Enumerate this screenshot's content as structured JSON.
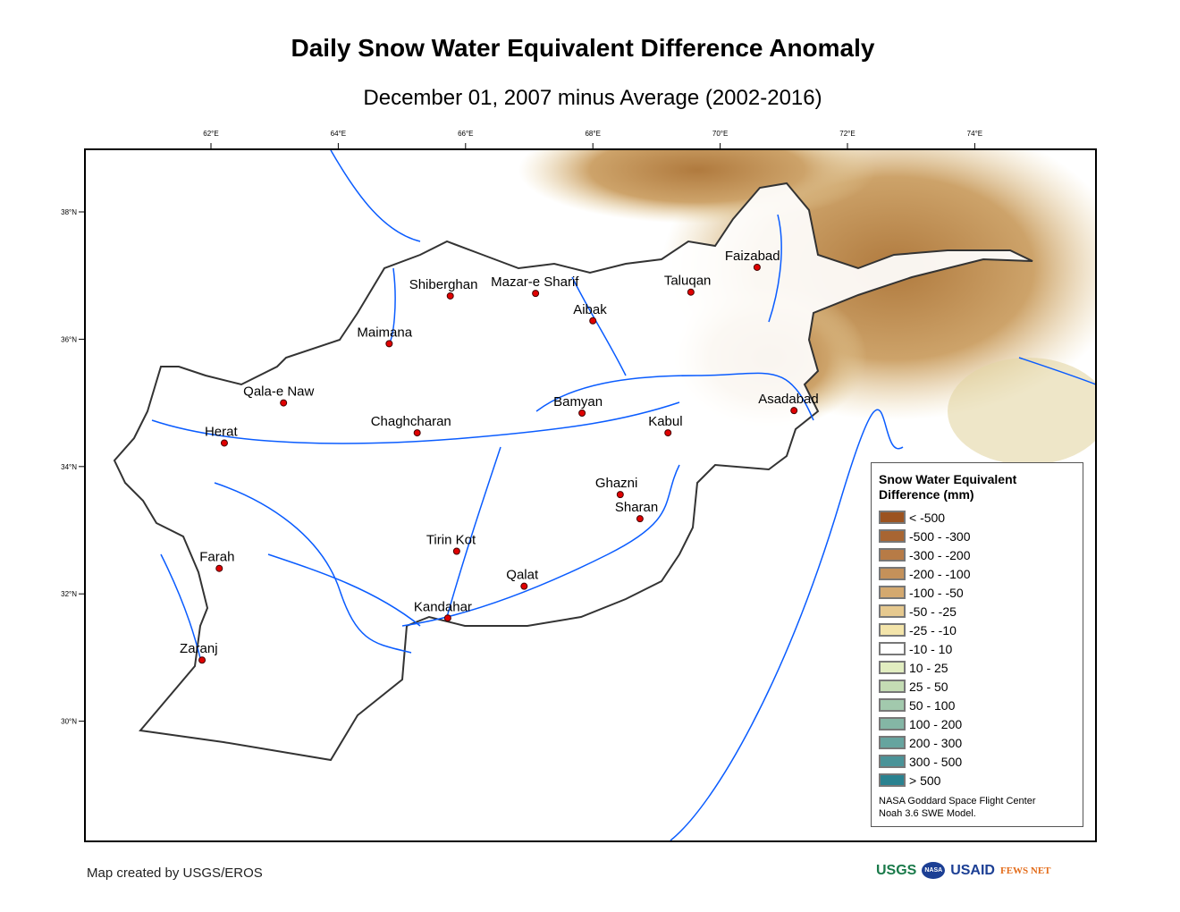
{
  "title": "Daily Snow Water Equivalent Difference Anomaly",
  "subtitle": "December 01, 2007 minus Average (2002-2016)",
  "axes": {
    "lon_ticks": [
      {
        "value": 62,
        "label": "62°E"
      },
      {
        "value": 64,
        "label": "64°E"
      },
      {
        "value": 66,
        "label": "66°E"
      },
      {
        "value": 68,
        "label": "68°E"
      },
      {
        "value": 70,
        "label": "70°E"
      },
      {
        "value": 72,
        "label": "72°E"
      },
      {
        "value": 74,
        "label": "74°E"
      }
    ],
    "lat_ticks": [
      {
        "value": 38,
        "label": "38°N"
      },
      {
        "value": 36,
        "label": "36°N"
      },
      {
        "value": 34,
        "label": "34°N"
      },
      {
        "value": 32,
        "label": "32°N"
      },
      {
        "value": 30,
        "label": "30°N"
      }
    ]
  },
  "cities": [
    {
      "name": "Herat",
      "lon": 62.21,
      "lat": 34.37,
      "dx": -22,
      "dy": -8
    },
    {
      "name": "Qala-e Naw",
      "lon": 63.14,
      "lat": 35.0,
      "dx": -45,
      "dy": -8
    },
    {
      "name": "Maimana",
      "lon": 64.8,
      "lat": 35.93,
      "dx": -36,
      "dy": -8
    },
    {
      "name": "Shiberghan",
      "lon": 65.76,
      "lat": 36.68,
      "dx": -46,
      "dy": -8
    },
    {
      "name": "Mazar-e Sharif",
      "lon": 67.1,
      "lat": 36.72,
      "dx": -50,
      "dy": -8
    },
    {
      "name": "Aibak",
      "lon": 68.0,
      "lat": 36.29,
      "dx": -22,
      "dy": -8
    },
    {
      "name": "Taluqan",
      "lon": 69.54,
      "lat": 36.74,
      "dx": -30,
      "dy": -8
    },
    {
      "name": "Faizabad",
      "lon": 70.58,
      "lat": 37.13,
      "dx": -36,
      "dy": -8
    },
    {
      "name": "Bamyan",
      "lon": 67.83,
      "lat": 34.84,
      "dx": -32,
      "dy": -8
    },
    {
      "name": "Chaghcharan",
      "lon": 65.24,
      "lat": 34.53,
      "dx": -52,
      "dy": -8
    },
    {
      "name": "Kabul",
      "lon": 69.18,
      "lat": 34.53,
      "dx": -22,
      "dy": -8
    },
    {
      "name": "Asadabad",
      "lon": 71.16,
      "lat": 34.88,
      "dx": -40,
      "dy": -8
    },
    {
      "name": "Ghazni",
      "lon": 68.43,
      "lat": 33.56,
      "dx": -28,
      "dy": -8
    },
    {
      "name": "Sharan",
      "lon": 68.74,
      "lat": 33.18,
      "dx": -28,
      "dy": -8
    },
    {
      "name": "Tirin Kot",
      "lon": 65.86,
      "lat": 32.67,
      "dx": -34,
      "dy": -8
    },
    {
      "name": "Qalat",
      "lon": 66.92,
      "lat": 32.12,
      "dx": -20,
      "dy": -8
    },
    {
      "name": "Kandahar",
      "lon": 65.72,
      "lat": 31.62,
      "dx": -38,
      "dy": -8
    },
    {
      "name": "Farah",
      "lon": 62.13,
      "lat": 32.4,
      "dx": -22,
      "dy": -8
    },
    {
      "name": "Zaranj",
      "lon": 61.86,
      "lat": 30.96,
      "dx": -25,
      "dy": -8
    }
  ],
  "legend": {
    "title": "Snow Water Equivalent Difference (mm)",
    "items": [
      {
        "label": "< -500",
        "color": "#9c5320"
      },
      {
        "label": "-500 - -300",
        "color": "#a86532"
      },
      {
        "label": "-300 - -200",
        "color": "#b77b46"
      },
      {
        "label": "-200 - -100",
        "color": "#c4915a"
      },
      {
        "label": "-100 - -50",
        "color": "#d4a96f"
      },
      {
        "label": "-50 - -25",
        "color": "#e6c98f"
      },
      {
        "label": "-25 - -10",
        "color": "#f3e4aa"
      },
      {
        "label": "-10 - 10",
        "color": "#ffffff"
      },
      {
        "label": "10 - 25",
        "color": "#e1edc0"
      },
      {
        "label": "25 - 50",
        "color": "#c4dcb4"
      },
      {
        "label": "50 - 100",
        "color": "#a2c9ad"
      },
      {
        "label": "100 - 200",
        "color": "#84b6a5"
      },
      {
        "label": "200 - 300",
        "color": "#66a49f"
      },
      {
        "label": "300 - 500",
        "color": "#4a9398"
      },
      {
        "label": "> 500",
        "color": "#2a8290"
      }
    ],
    "credit_line1": "NASA Goddard Space Flight Center",
    "credit_line2": "Noah 3.6 SWE Model."
  },
  "footer": "Map created by USGS/EROS",
  "logos": [
    "USGS",
    "NASA",
    "USAID",
    "FEWS NET"
  ]
}
